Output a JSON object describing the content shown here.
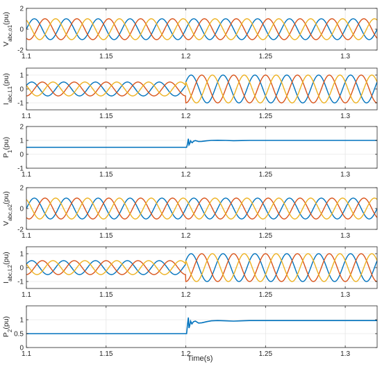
{
  "figure": {
    "xlabel": "Time(s)"
  },
  "chart_data": [
    {
      "type": "line",
      "ylabel": {
        "main": "V",
        "sub": "abc,o1",
        "unit": "(pu)"
      },
      "xlim": [
        1.1,
        1.32
      ],
      "ylim": [
        -2,
        2
      ],
      "xticks": [
        "1.1",
        "1.15",
        "1.2",
        "1.25",
        "1.3"
      ],
      "yticks": [
        {
          "v": -2,
          "t": "-2"
        },
        {
          "v": 0,
          "t": "0"
        },
        {
          "v": 2,
          "t": "2"
        }
      ],
      "grid": true,
      "signal": "three-phase-sine",
      "freq_hz": 50,
      "amplitude_before": 1.0,
      "amplitude_after": 1.0,
      "step_time": 1.2,
      "series": [
        {
          "phase_deg": 0
        },
        {
          "phase_deg": -120
        },
        {
          "phase_deg": 120
        }
      ]
    },
    {
      "type": "line",
      "ylabel": {
        "main": "I",
        "sub": "abc,L1",
        "unit": "(pu)"
      },
      "xlim": [
        1.1,
        1.32
      ],
      "ylim": [
        -1.5,
        1.5
      ],
      "xticks": [
        "1.1",
        "1.15",
        "1.2",
        "1.25",
        "1.3"
      ],
      "yticks": [
        {
          "v": -1,
          "t": "-1"
        },
        {
          "v": 0,
          "t": "0"
        },
        {
          "v": 1,
          "t": "1"
        }
      ],
      "grid": true,
      "signal": "three-phase-sine",
      "freq_hz": 50,
      "amplitude_before": 0.5,
      "amplitude_after": 1.0,
      "step_time": 1.2,
      "series": [
        {
          "phase_deg": 30
        },
        {
          "phase_deg": -90
        },
        {
          "phase_deg": 150
        }
      ]
    },
    {
      "type": "line",
      "ylabel": {
        "main": "P",
        "sub": "1",
        "unit": "(pu)"
      },
      "xlim": [
        1.1,
        1.32
      ],
      "ylim": [
        -1,
        2
      ],
      "xticks": [
        "1.1",
        "1.15",
        "1.2",
        "1.25",
        "1.3"
      ],
      "yticks": [
        {
          "v": -1,
          "t": "-1"
        },
        {
          "v": 0,
          "t": "0"
        },
        {
          "v": 1,
          "t": "1"
        },
        {
          "v": 2,
          "t": "2"
        }
      ],
      "grid": true,
      "signal": "step-response",
      "series": [
        {
          "points": [
            [
              1.1,
              0.5
            ],
            [
              1.2,
              0.5
            ],
            [
              1.2005,
              0.5
            ],
            [
              1.201,
              0.72
            ],
            [
              1.2016,
              1.12
            ],
            [
              1.202,
              0.68
            ],
            [
              1.2025,
              0.78
            ],
            [
              1.203,
              0.97
            ],
            [
              1.2035,
              0.88
            ],
            [
              1.204,
              0.83
            ],
            [
              1.2048,
              0.94
            ],
            [
              1.206,
              0.99
            ],
            [
              1.208,
              0.92
            ],
            [
              1.21,
              0.93
            ],
            [
              1.213,
              0.97
            ],
            [
              1.216,
              1.0
            ],
            [
              1.22,
              1.01
            ],
            [
              1.225,
              1.0
            ],
            [
              1.23,
              0.98
            ],
            [
              1.235,
              0.99
            ],
            [
              1.24,
              1.0
            ],
            [
              1.25,
              1.0
            ],
            [
              1.26,
              1.0
            ],
            [
              1.28,
              1.0
            ],
            [
              1.3,
              1.0
            ],
            [
              1.32,
              1.0
            ]
          ]
        }
      ]
    },
    {
      "type": "line",
      "ylabel": {
        "main": "V",
        "sub": "abc,o2",
        "unit": "(pu)"
      },
      "xlim": [
        1.1,
        1.32
      ],
      "ylim": [
        -2,
        2
      ],
      "xticks": [
        "1.1",
        "1.15",
        "1.2",
        "1.25",
        "1.3"
      ],
      "yticks": [
        {
          "v": -2,
          "t": "-2"
        },
        {
          "v": 0,
          "t": "0"
        },
        {
          "v": 2,
          "t": "2"
        }
      ],
      "grid": true,
      "signal": "three-phase-sine",
      "freq_hz": 50,
      "amplitude_before": 1.0,
      "amplitude_after": 1.0,
      "step_time": 1.2,
      "series": [
        {
          "phase_deg": 0
        },
        {
          "phase_deg": -120
        },
        {
          "phase_deg": 120
        }
      ]
    },
    {
      "type": "line",
      "ylabel": {
        "main": "I",
        "sub": "abc,L2",
        "unit": "(pu)"
      },
      "xlim": [
        1.1,
        1.32
      ],
      "ylim": [
        -1.5,
        1.5
      ],
      "xticks": [
        "1.1",
        "1.15",
        "1.2",
        "1.25",
        "1.3"
      ],
      "yticks": [
        {
          "v": -1,
          "t": "-1"
        },
        {
          "v": 0,
          "t": "0"
        },
        {
          "v": 1,
          "t": "1"
        }
      ],
      "grid": true,
      "signal": "three-phase-sine",
      "freq_hz": 50,
      "amplitude_before": 0.5,
      "amplitude_after": 1.0,
      "step_time": 1.2,
      "series": [
        {
          "phase_deg": 30
        },
        {
          "phase_deg": -90
        },
        {
          "phase_deg": 150
        }
      ]
    },
    {
      "type": "line",
      "ylabel": {
        "main": "P",
        "sub": "2",
        "unit": "(pu)"
      },
      "xlim": [
        1.1,
        1.32
      ],
      "ylim": [
        0,
        1.5
      ],
      "xticks": [
        "1.1",
        "1.15",
        "1.2",
        "1.25",
        "1.3"
      ],
      "yticks": [
        {
          "v": 0,
          "t": "0"
        },
        {
          "v": 0.5,
          "t": "0.5"
        },
        {
          "v": 1,
          "t": "1"
        }
      ],
      "grid": true,
      "signal": "step-response",
      "series": [
        {
          "points": [
            [
              1.1,
              0.5
            ],
            [
              1.2,
              0.5
            ],
            [
              1.2005,
              0.5
            ],
            [
              1.201,
              0.8
            ],
            [
              1.2016,
              1.08
            ],
            [
              1.202,
              0.7
            ],
            [
              1.2025,
              0.8
            ],
            [
              1.203,
              0.95
            ],
            [
              1.2038,
              0.85
            ],
            [
              1.2048,
              0.93
            ],
            [
              1.206,
              0.95
            ],
            [
              1.208,
              0.88
            ],
            [
              1.21,
              0.89
            ],
            [
              1.213,
              0.93
            ],
            [
              1.216,
              0.96
            ],
            [
              1.22,
              0.97
            ],
            [
              1.225,
              0.96
            ],
            [
              1.23,
              0.95
            ],
            [
              1.235,
              0.96
            ],
            [
              1.24,
              0.97
            ],
            [
              1.25,
              0.97
            ],
            [
              1.26,
              0.97
            ],
            [
              1.28,
              0.97
            ],
            [
              1.3,
              0.97
            ],
            [
              1.32,
              0.97
            ]
          ]
        }
      ]
    }
  ],
  "colors": {
    "series": [
      "#0072BD",
      "#D95319",
      "#EDB120"
    ],
    "grid": "#e6e6e6",
    "axis": "#262626"
  }
}
